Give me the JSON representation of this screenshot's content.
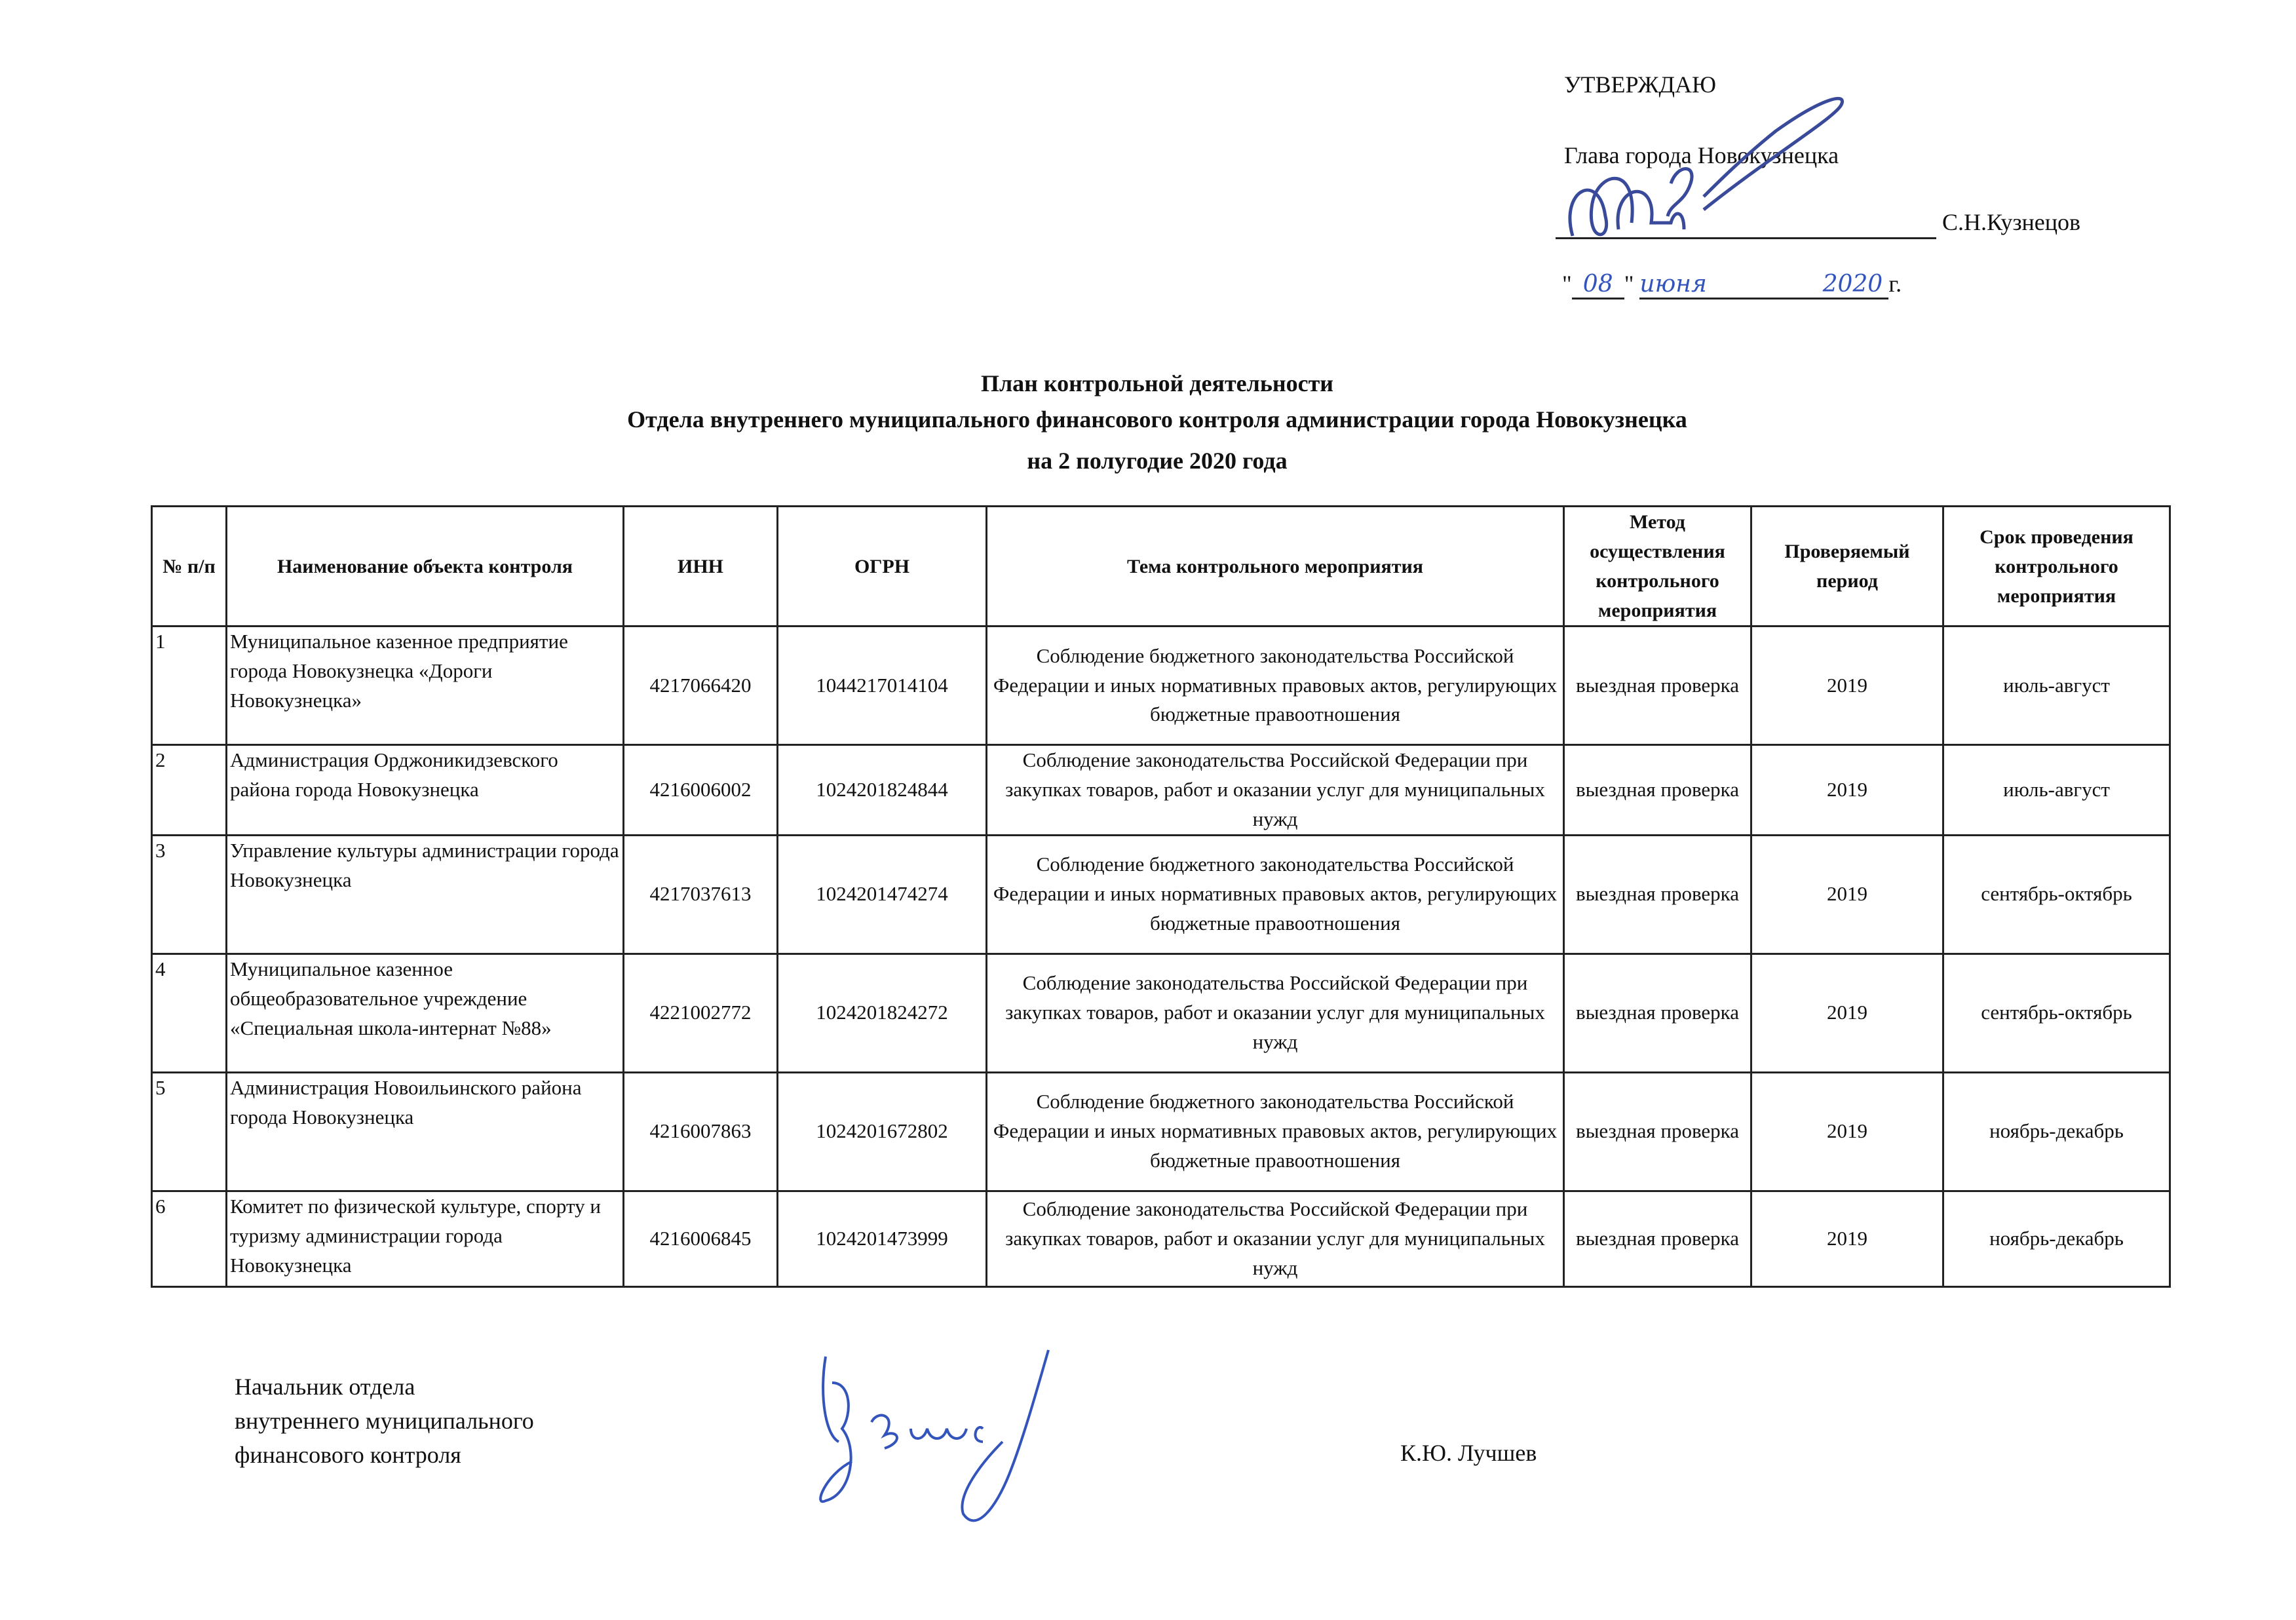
{
  "approval": {
    "approve_label": "УТВЕРЖДАЮ",
    "position": "Глава города Новокузнецка",
    "name": "С.Н.Кузнецов",
    "date_open_quote": "\"",
    "date_day": "08",
    "date_close_quote": "\"",
    "date_month": "июня",
    "date_year": "2020",
    "date_suffix": "г."
  },
  "title": {
    "line1": "План контрольной деятельности",
    "line2": "Отдела внутреннего муниципального финансового контроля администрации города Новокузнецка",
    "line3": "на 2 полугодие 2020 года"
  },
  "table": {
    "headers": [
      "№ п/п",
      "Наименование объекта контроля",
      "ИНН",
      "ОГРН",
      "Тема контрольного мероприятия",
      "Метод осуществления контрольного мероприятия",
      "Проверяемый период",
      "Срок проведения контрольного мероприятия"
    ],
    "rows": [
      [
        "1",
        "Муниципальное казенное предприятие города Новокузнецка «Дороги Новокузнецка»",
        "4217066420",
        "1044217014104",
        "Соблюдение бюджетного законодательства Российской Федерации и иных нормативных правовых актов, регулирующих бюджетные правоотношения",
        "выездная проверка",
        "2019",
        "июль-август"
      ],
      [
        "2",
        "Администрация Орджоникидзевского района города Новокузнецка",
        "4216006002",
        "1024201824844",
        "Соблюдение законодательства Российской Федерации при закупках товаров, работ и оказании услуг для муниципальных нужд",
        "выездная проверка",
        "2019",
        "июль-август"
      ],
      [
        "3",
        "Управление культуры администрации города Новокузнецка",
        "4217037613",
        "1024201474274",
        "Соблюдение бюджетного законодательства Российской Федерации и иных нормативных правовых актов, регулирующих бюджетные правоотношения",
        "выездная проверка",
        "2019",
        "сентябрь-октябрь"
      ],
      [
        "4",
        "Муниципальное казенное общеобразовательное учреждение «Специальная школа-интернат №88»",
        "4221002772",
        "1024201824272",
        "Соблюдение законодательства Российской Федерации при закупках товаров, работ и оказании услуг для муниципальных нужд",
        "выездная проверка",
        "2019",
        "сентябрь-октябрь"
      ],
      [
        "5",
        "Администрация Новоильинского района города Новокузнецка",
        "4216007863",
        "1024201672802",
        "Соблюдение бюджетного законодательства Российской Федерации и иных нормативных правовых актов, регулирующих бюджетные правоотношения",
        "выездная проверка",
        "2019",
        "ноябрь-декабрь"
      ],
      [
        "6",
        "Комитет по физической культуре, спорту и туризму администрации города Новокузнецка",
        "4216006845",
        "1024201473999",
        "Соблюдение законодательства Российской Федерации при закупках товаров, работ и оказании услуг для муниципальных нужд",
        "выездная проверка",
        "2019",
        "ноябрь-декабрь"
      ]
    ]
  },
  "footer": {
    "position_line1": "Начальник отдела",
    "position_line2": "внутреннего муниципального",
    "position_line3": "финансового контроля",
    "name": "К.Ю. Лучшев"
  },
  "colors": {
    "ink": "#111111",
    "signature_ink": "#3355bb"
  }
}
